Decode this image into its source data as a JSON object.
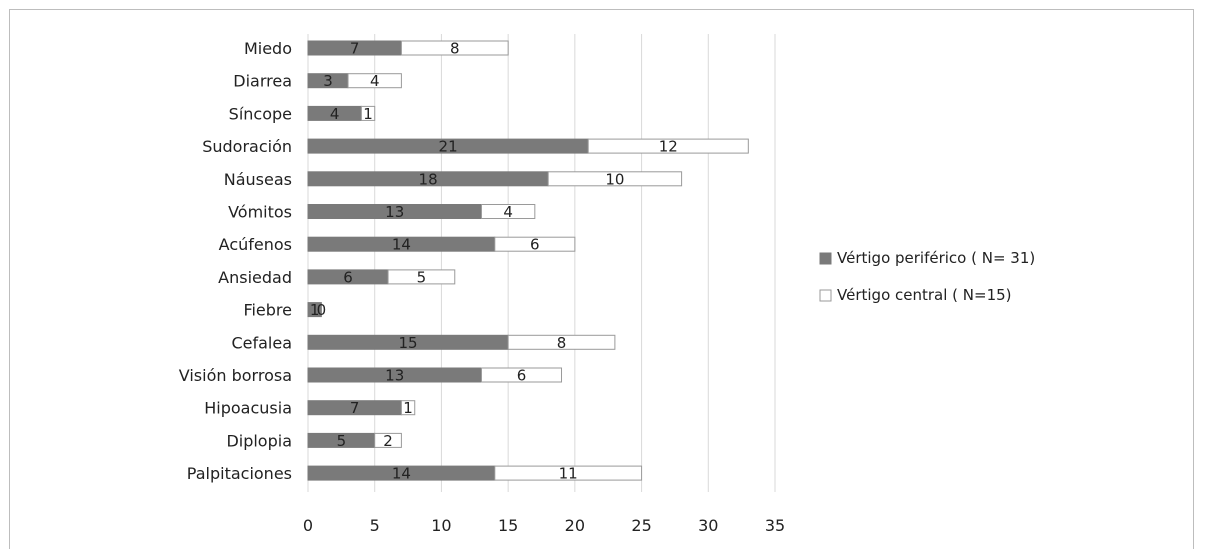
{
  "chart_data": {
    "type": "bar",
    "orientation": "horizontal",
    "stacked": true,
    "categories": [
      "Miedo",
      "Diarrea",
      "Síncope",
      "Sudoración",
      "Náuseas",
      "Vómitos",
      "Acúfenos",
      "Ansiedad",
      "Fiebre",
      "Cefalea",
      "Visión borrosa",
      "Hipoacusia",
      "Diplopia",
      "Palpitaciones"
    ],
    "series": [
      {
        "name": "Vértigo periférico ( N= 31)",
        "color": "#7a7a7a",
        "values": [
          7,
          3,
          4,
          21,
          18,
          13,
          14,
          6,
          1,
          15,
          13,
          7,
          5,
          14
        ]
      },
      {
        "name": "Vértigo central ( N=15)",
        "color": "#ffffff",
        "values": [
          8,
          4,
          1,
          12,
          10,
          4,
          6,
          5,
          0,
          8,
          6,
          1,
          2,
          11
        ]
      }
    ],
    "xlim": [
      0,
      35
    ],
    "xticks": [
      0,
      5,
      10,
      15,
      20,
      25,
      30,
      35
    ],
    "grid": true,
    "legend_position": "right"
  }
}
